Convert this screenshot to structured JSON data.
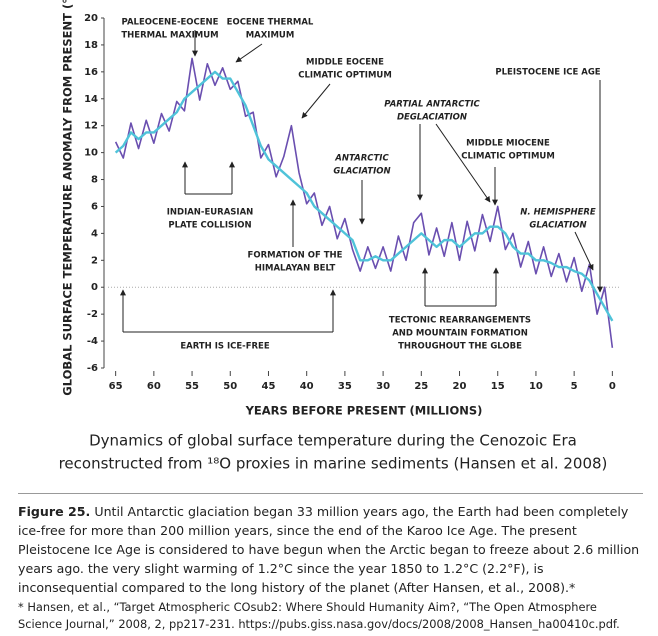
{
  "chart_data": {
    "type": "line",
    "ylabel": "GLOBAL SURFACE TEMPERATURE ANOMALY FROM PRESENT (°C)",
    "xlabel": "YEARS BEFORE PRESENT (MILLIONS)",
    "title_lines": [
      "Dynamics of global surface temperature during the Cenozoic Era",
      "reconstructed from ¹⁸O proxies in marine sediments (Hansen et al. 2008)"
    ],
    "xlim": [
      66,
      -1
    ],
    "ylim": [
      -6,
      20
    ],
    "xticks": [
      65,
      60,
      55,
      50,
      45,
      40,
      35,
      30,
      25,
      20,
      15,
      10,
      5,
      0
    ],
    "yticks": [
      20,
      18,
      16,
      14,
      12,
      10,
      8,
      6,
      4,
      2,
      0,
      -2,
      -4,
      -6
    ],
    "x": [
      65,
      64,
      63,
      62,
      61,
      60,
      59,
      58,
      57,
      56,
      55,
      54,
      53,
      52,
      51,
      50,
      49,
      48,
      47,
      46,
      45,
      44,
      43,
      42,
      41,
      40,
      39,
      38,
      37,
      36,
      35,
      34,
      33,
      32,
      31,
      30,
      29,
      28,
      27,
      26,
      25,
      24,
      23,
      22,
      21,
      20,
      19,
      18,
      17,
      16,
      15,
      14,
      13,
      12,
      11,
      10,
      9,
      8,
      7,
      6,
      5,
      4,
      3,
      2,
      1,
      0
    ],
    "series": [
      {
        "color": "#6a4fb0",
        "values": [
          10.8,
          9.6,
          12.2,
          10.3,
          12.4,
          10.7,
          12.9,
          11.6,
          13.8,
          13.1,
          17,
          13.9,
          16.6,
          15,
          16.3,
          14.7,
          15.3,
          12.7,
          13,
          9.6,
          10.6,
          8.2,
          9.7,
          12,
          8.5,
          6.2,
          7,
          4.6,
          6,
          3.6,
          5.1,
          2.8,
          1.2,
          3,
          1.4,
          3,
          1.2,
          3.8,
          2,
          4.8,
          5.5,
          2.4,
          4.4,
          2.3,
          4.8,
          2,
          4.9,
          2.7,
          5.4,
          3.4,
          6,
          2.8,
          4,
          1.5,
          3.4,
          1,
          3,
          0.8,
          2.5,
          0.4,
          2.2,
          -0.3,
          1.7,
          -2,
          0,
          -4.5
        ]
      },
      {
        "color": "#4fc3d9",
        "values": [
          10,
          10.5,
          11.5,
          11,
          11.5,
          11.5,
          12,
          12.5,
          13,
          14,
          14.5,
          15,
          15.5,
          16,
          15.5,
          15.5,
          14.5,
          13.5,
          12,
          10.5,
          9.5,
          9,
          8.5,
          8,
          7.5,
          7,
          6,
          5.5,
          5,
          4.5,
          4,
          3.5,
          2,
          2,
          2.3,
          2,
          2,
          2.5,
          3,
          3.5,
          4,
          3.5,
          3,
          3.5,
          3.5,
          3,
          3.5,
          4,
          4,
          4.5,
          4.5,
          4,
          3,
          2.5,
          2.5,
          2,
          2,
          1.8,
          1.5,
          1.5,
          1.2,
          1,
          0.5,
          -0.5,
          -1.5,
          -2.5
        ]
      }
    ],
    "annotations": [
      {
        "lines": [
          "PALEOCENE-EOCENE",
          "THERMAL MAXIMUM"
        ]
      },
      {
        "lines": [
          "EOCENE THERMAL",
          "MAXIMUM"
        ]
      },
      {
        "lines": [
          "MIDDLE EOCENE",
          "CLIMATIC OPTIMUM"
        ]
      },
      {
        "lines": [
          "PLEISTOCENE ICE AGE"
        ]
      },
      {
        "lines": [
          "PARTIAL ANTARCTIC",
          "DEGLACIATION"
        ]
      },
      {
        "lines": [
          "MIDDLE MIOCENE",
          "CLIMATIC OPTIMUM"
        ]
      },
      {
        "lines": [
          "ANTARCTIC",
          "GLACIATION"
        ]
      },
      {
        "lines": [
          "INDIAN-EURASIAN",
          "PLATE COLLISION"
        ]
      },
      {
        "lines": [
          "FORMATION OF THE",
          "HIMALAYAN BELT"
        ]
      },
      {
        "lines": [
          "N. HEMISPHERE",
          "GLACIATION"
        ]
      },
      {
        "lines": [
          "EARTH IS ICE-FREE"
        ]
      },
      {
        "lines": [
          "TECTONIC REARRANGEMENTS",
          "AND MOUNTAIN FORMATION",
          "THROUGHOUT THE GLOBE"
        ]
      }
    ]
  },
  "caption": {
    "label": "Figure 25.",
    "text": " Until Antarctic glaciation began 33 million years ago, the Earth had been completely ice-free for more than 200 million years, since the end of the Karoo Ice Age. The present Pleistocene Ice Age is considered to have begun when the Arctic began to freeze about 2.6 million years ago. the very slight warming of 1.2°C since the year 1850 to 1.2°C (2.2°F), is inconsequential compared to the long history of the planet (After Hansen, et al., 2008).*",
    "footnote": "*  Hansen, et al., “Target Atmospheric COsub2: Where Should Humanity Aim?, “The Open Atmosphere Science Journal,” 2008, 2, pp217-231. https://pubs.giss.nasa.gov/docs/2008/2008_Hansen_ha00410c.pdf."
  }
}
